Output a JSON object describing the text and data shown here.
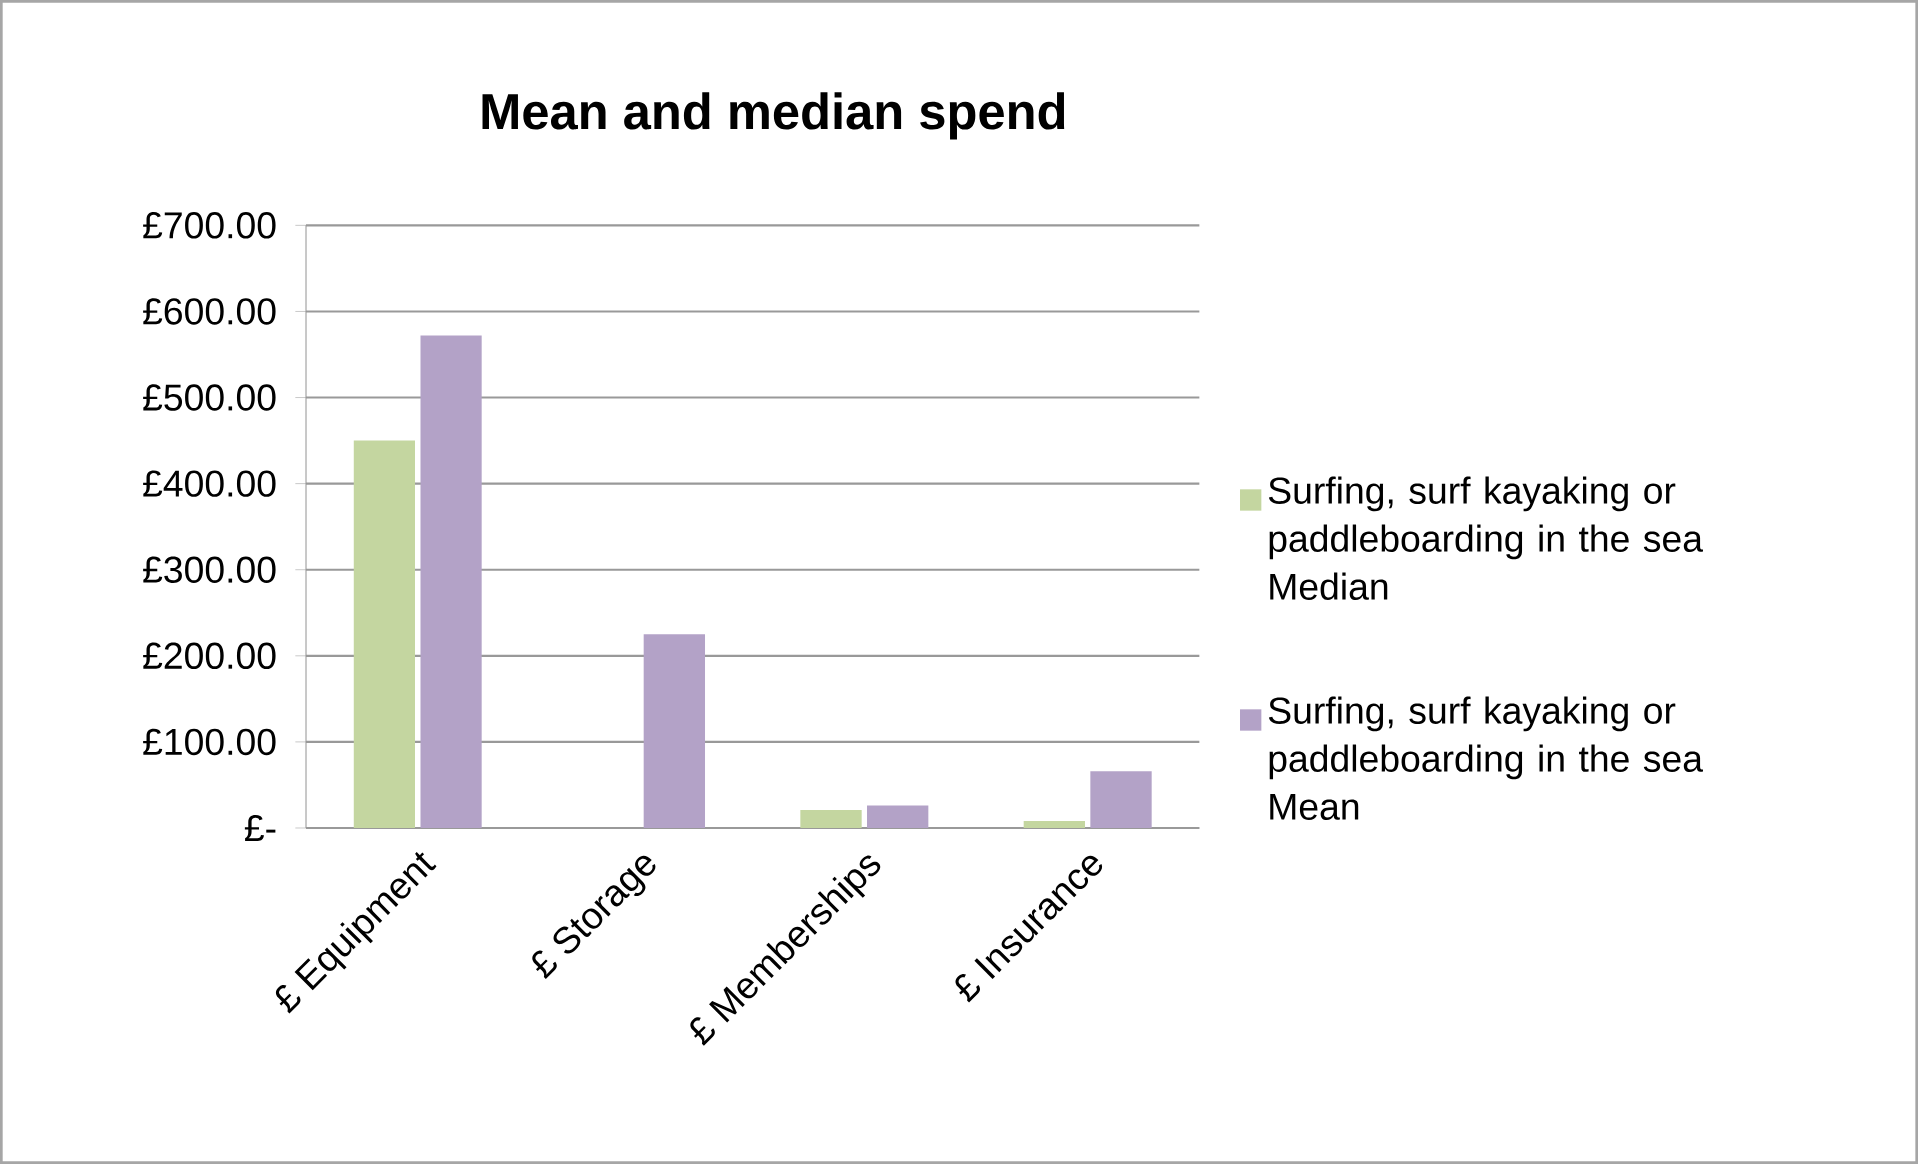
{
  "chart_data": {
    "type": "bar",
    "title": "Mean and median spend",
    "categories": [
      "£ Equipment",
      "£ Storage",
      "£ Memberships",
      "£ Insurance"
    ],
    "series": [
      {
        "name": "Surfing, surf kayaking or paddleboarding in the sea Median",
        "color": "#c4d6a0",
        "values": [
          450,
          0,
          21,
          8
        ]
      },
      {
        "name": "Surfing, surf kayaking or paddleboarding in the sea Mean",
        "color": "#b3a2c7",
        "values": [
          572,
          225,
          26,
          66
        ]
      }
    ],
    "ylim": [
      0,
      700
    ],
    "yticks": [
      {
        "value": 0,
        "label": "£-"
      },
      {
        "value": 100,
        "label": "£100.00"
      },
      {
        "value": 200,
        "label": "£200.00"
      },
      {
        "value": 300,
        "label": "£300.00"
      },
      {
        "value": 400,
        "label": "£400.00"
      },
      {
        "value": 500,
        "label": "£500.00"
      },
      {
        "value": 600,
        "label": "£600.00"
      },
      {
        "value": 700,
        "label": "£700.00"
      }
    ],
    "grid": "y",
    "legend": "right"
  }
}
